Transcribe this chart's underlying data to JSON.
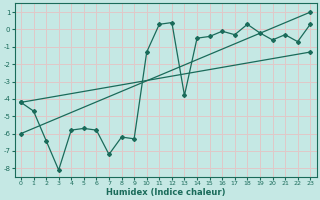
{
  "xlabel": "Humidex (Indice chaleur)",
  "xlim": [
    -0.5,
    23.5
  ],
  "ylim": [
    -8.5,
    1.5
  ],
  "yticks": [
    1,
    0,
    -1,
    -2,
    -3,
    -4,
    -5,
    -6,
    -7,
    -8
  ],
  "xticks": [
    0,
    1,
    2,
    3,
    4,
    5,
    6,
    7,
    8,
    9,
    10,
    11,
    12,
    13,
    14,
    15,
    16,
    17,
    18,
    19,
    20,
    21,
    22,
    23
  ],
  "background_color": "#c5e8e4",
  "grid_color": "#e0c8c8",
  "line_color": "#1a6b5a",
  "line1_x": [
    0,
    1,
    2,
    3,
    4,
    5,
    6,
    7,
    8,
    9,
    10,
    11,
    12,
    13,
    14,
    15,
    16,
    17,
    18,
    19,
    20,
    21,
    22,
    23
  ],
  "line1_y": [
    -4.2,
    -4.7,
    -6.4,
    -8.1,
    -5.8,
    -5.7,
    -5.8,
    -7.2,
    -6.2,
    -6.3,
    -1.3,
    0.3,
    0.4,
    -3.8,
    -0.5,
    -0.4,
    -0.1,
    -0.3,
    0.3,
    -0.2,
    -0.6,
    -0.3,
    -0.7,
    0.3
  ],
  "line2_x": [
    0,
    23
  ],
  "line2_y": [
    -4.2,
    -1.3
  ],
  "line3_x": [
    0,
    23
  ],
  "line3_y": [
    -6.0,
    1.0
  ]
}
